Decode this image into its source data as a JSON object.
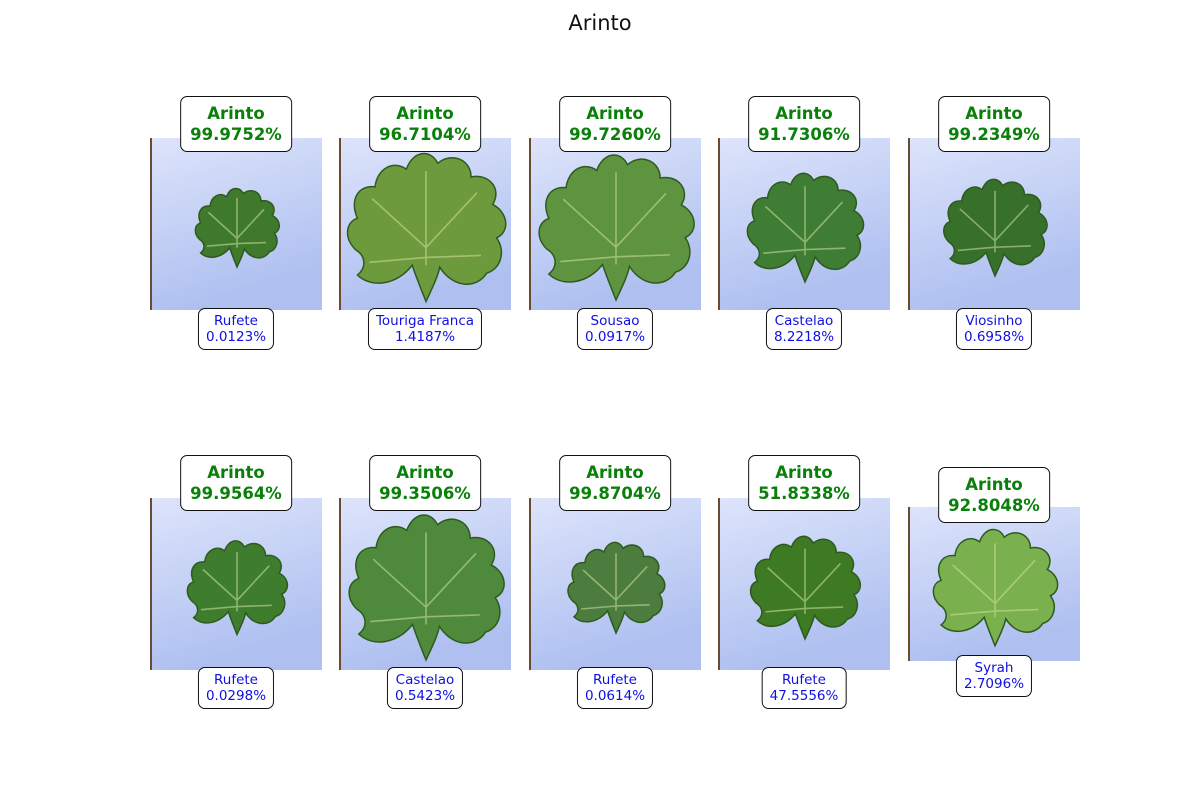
{
  "title": "Arinto",
  "colors": {
    "top_text": "#0a800a",
    "bottom_text": "#1010e0",
    "background_light": "#dde4fb",
    "background_dark": "#aebff0"
  },
  "panels": [
    {
      "top_class": "Arinto",
      "top_pct": "99.9752%",
      "second_class": "Rufete",
      "second_pct": "0.0123%",
      "leaf_color": "#3f7a2c",
      "leaf_scale": 0.52
    },
    {
      "top_class": "Arinto",
      "top_pct": "96.7104%",
      "second_class": "Touriga Franca",
      "second_pct": "1.4187%",
      "leaf_color": "#6d9a3c",
      "leaf_scale": 0.98
    },
    {
      "top_class": "Arinto",
      "top_pct": "99.7260%",
      "second_class": "Sousao",
      "second_pct": "0.0917%",
      "leaf_color": "#5e9440",
      "leaf_scale": 0.96
    },
    {
      "top_class": "Arinto",
      "top_pct": "91.7306%",
      "second_class": "Castelao",
      "second_pct": "8.2218%",
      "leaf_color": "#3f7d35",
      "leaf_scale": 0.72
    },
    {
      "top_class": "Arinto",
      "top_pct": "99.2349%",
      "second_class": "Viosinho",
      "second_pct": "0.6958%",
      "leaf_color": "#36702a",
      "leaf_scale": 0.64
    },
    {
      "top_class": "Arinto",
      "top_pct": "99.9564%",
      "second_class": "Rufete",
      "second_pct": "0.0298%",
      "leaf_color": "#3f7d2e",
      "leaf_scale": 0.62
    },
    {
      "top_class": "Arinto",
      "top_pct": "99.3506%",
      "second_class": "Castelao",
      "second_pct": "0.5423%",
      "leaf_color": "#4f8a3c",
      "leaf_scale": 0.96
    },
    {
      "top_class": "Arinto",
      "top_pct": "99.8704%",
      "second_class": "Rufete",
      "second_pct": "0.0614%",
      "leaf_color": "#4c7d3e",
      "leaf_scale": 0.6
    },
    {
      "top_class": "Arinto",
      "top_pct": "51.8338%",
      "second_class": "Rufete",
      "second_pct": "47.5556%",
      "leaf_color": "#3e7a24",
      "leaf_scale": 0.68
    },
    {
      "top_class": "Arinto",
      "top_pct": "92.8048%",
      "second_class": "Syrah",
      "second_pct": "2.7096%",
      "leaf_color": "#7bb04e",
      "leaf_scale": 0.86
    }
  ]
}
